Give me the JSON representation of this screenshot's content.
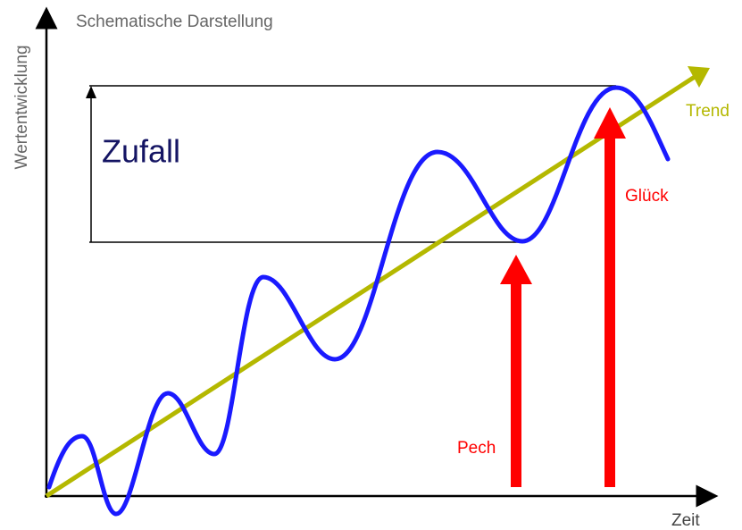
{
  "title": "Schematische Darstellung",
  "y_axis_label": "Wertentwicklung",
  "x_axis_label": "Zeit",
  "range_label": "Zufall",
  "trend_label": "Trend",
  "luck_label": "Glück",
  "bad_luck_label": "Pech"
}
